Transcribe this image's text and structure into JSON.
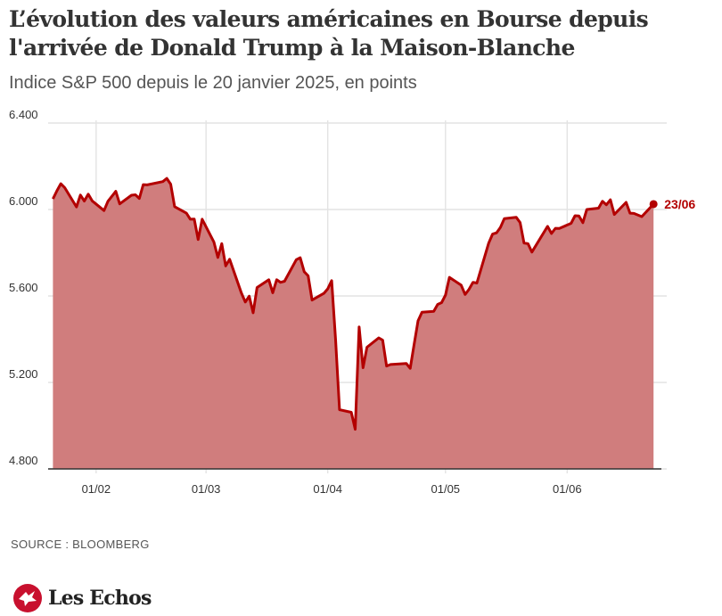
{
  "title": "L’évolution des valeurs américaines en Bourse depuis l'arrivée de Donald Trump à la Maison-Blanche",
  "subtitle": "Indice S&P 500 depuis le 20 janvier 2025, en points",
  "source": "SOURCE : BLOOMBERG",
  "brand": "Les Echos",
  "colors": {
    "line": "#b30000",
    "area": "#d07d7d",
    "grid": "#e3e3e3",
    "axis": "#333333"
  },
  "chart_data": {
    "type": "area",
    "title": "L’évolution des valeurs américaines en Bourse depuis l'arrivée de Donald Trump à la Maison-Blanche",
    "subtitle": "Indice S&P 500 depuis le 20 janvier 2025, en points",
    "xlabel": "",
    "ylabel": "",
    "x_range": [
      "2025-01-20",
      "2025-06-25"
    ],
    "ylim": [
      4800,
      6400
    ],
    "y_ticks": [
      4800,
      5200,
      5600,
      6000,
      6400
    ],
    "y_tick_labels": [
      "4.800",
      "5.200",
      "5.600",
      "6.000",
      "6.400"
    ],
    "x_ticks": [
      "2025-02-01",
      "2025-03-01",
      "2025-04-01",
      "2025-05-01",
      "2025-06-01"
    ],
    "x_tick_labels": [
      "01/02",
      "01/03",
      "01/04",
      "01/05",
      "01/06"
    ],
    "grid": true,
    "end_label": "23/06",
    "series": [
      {
        "x": [
          "2025-01-21",
          "2025-01-22",
          "2025-01-23",
          "2025-01-24",
          "2025-01-27",
          "2025-01-28",
          "2025-01-29",
          "2025-01-30",
          "2025-01-31",
          "2025-02-03",
          "2025-02-04",
          "2025-02-05",
          "2025-02-06",
          "2025-02-07",
          "2025-02-10",
          "2025-02-11",
          "2025-02-12",
          "2025-02-13",
          "2025-02-14",
          "2025-02-18",
          "2025-02-19",
          "2025-02-20",
          "2025-02-21",
          "2025-02-24",
          "2025-02-25",
          "2025-02-26",
          "2025-02-27",
          "2025-02-28",
          "2025-03-03",
          "2025-03-04",
          "2025-03-05",
          "2025-03-06",
          "2025-03-07",
          "2025-03-10",
          "2025-03-11",
          "2025-03-12",
          "2025-03-13",
          "2025-03-14",
          "2025-03-17",
          "2025-03-18",
          "2025-03-19",
          "2025-03-20",
          "2025-03-21",
          "2025-03-24",
          "2025-03-25",
          "2025-03-26",
          "2025-03-27",
          "2025-03-28",
          "2025-03-31",
          "2025-04-01",
          "2025-04-02",
          "2025-04-03",
          "2025-04-04",
          "2025-04-07",
          "2025-04-08",
          "2025-04-09",
          "2025-04-10",
          "2025-04-11",
          "2025-04-14",
          "2025-04-15",
          "2025-04-16",
          "2025-04-17",
          "2025-04-21",
          "2025-04-22",
          "2025-04-23",
          "2025-04-24",
          "2025-04-25",
          "2025-04-28",
          "2025-04-29",
          "2025-04-30",
          "2025-05-01",
          "2025-05-02",
          "2025-05-05",
          "2025-05-06",
          "2025-05-07",
          "2025-05-08",
          "2025-05-09",
          "2025-05-12",
          "2025-05-13",
          "2025-05-14",
          "2025-05-15",
          "2025-05-16",
          "2025-05-19",
          "2025-05-20",
          "2025-05-21",
          "2025-05-22",
          "2025-05-23",
          "2025-05-27",
          "2025-05-28",
          "2025-05-29",
          "2025-05-30",
          "2025-06-02",
          "2025-06-03",
          "2025-06-04",
          "2025-06-05",
          "2025-06-06",
          "2025-06-09",
          "2025-06-10",
          "2025-06-11",
          "2025-06-12",
          "2025-06-13",
          "2025-06-16",
          "2025-06-17",
          "2025-06-18",
          "2025-06-20",
          "2025-06-23"
        ],
        "values": [
          6049,
          6086,
          6119,
          6101,
          6012,
          6067,
          6039,
          6071,
          6040,
          5995,
          6038,
          6061,
          6084,
          6026,
          6066,
          6068,
          6051,
          6115,
          6114,
          6129,
          6144,
          6117,
          6013,
          5983,
          5955,
          5956,
          5861,
          5955,
          5849,
          5778,
          5842,
          5739,
          5770,
          5614,
          5572,
          5599,
          5522,
          5639,
          5675,
          5615,
          5675,
          5663,
          5668,
          5768,
          5777,
          5712,
          5693,
          5581,
          5612,
          5633,
          5671,
          5397,
          5074,
          5062,
          4983,
          5457,
          5268,
          5363,
          5406,
          5396,
          5276,
          5283,
          5288,
          5265,
          5376,
          5485,
          5525,
          5529,
          5561,
          5569,
          5604,
          5686,
          5650,
          5607,
          5631,
          5663,
          5660,
          5844,
          5886,
          5892,
          5917,
          5958,
          5964,
          5940,
          5845,
          5842,
          5803,
          5922,
          5889,
          5913,
          5912,
          5936,
          5971,
          5970,
          5939,
          6000,
          6006,
          6038,
          6022,
          6045,
          5977,
          6033,
          5983,
          5982,
          5967,
          6025
        ]
      }
    ]
  }
}
